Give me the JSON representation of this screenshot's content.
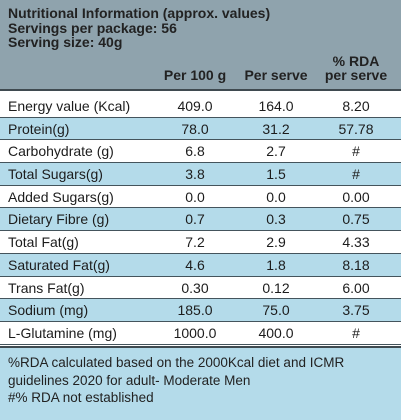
{
  "header": {
    "title": "Nutritional Information (approx. values)",
    "servings": "Servings per package: 56",
    "serving_size": "Serving size: 40g"
  },
  "columns": {
    "per_100g": "Per 100 g",
    "per_serve": "Per serve",
    "rda_line1": "% RDA",
    "rda_line2": "per serve"
  },
  "rows": [
    {
      "name": "Energy value (Kcal)",
      "per_100g": "409.0",
      "per_serve": "164.0",
      "rda": "8.20"
    },
    {
      "name": "Protein(g)",
      "per_100g": "78.0",
      "per_serve": "31.2",
      "rda": "57.78"
    },
    {
      "name": "Carbohydrate (g)",
      "per_100g": "6.8",
      "per_serve": "2.7",
      "rda": "#"
    },
    {
      "name": "Total Sugars(g)",
      "per_100g": "3.8",
      "per_serve": "1.5",
      "rda": "#"
    },
    {
      "name": "Added Sugars(g)",
      "per_100g": "0.0",
      "per_serve": "0.0",
      "rda": "0.00"
    },
    {
      "name": "Dietary Fibre (g)",
      "per_100g": "0.7",
      "per_serve": "0.3",
      "rda": "0.75"
    },
    {
      "name": "Total Fat(g)",
      "per_100g": "7.2",
      "per_serve": "2.9",
      "rda": "4.33"
    },
    {
      "name": "Saturated Fat(g)",
      "per_100g": "4.6",
      "per_serve": "1.8",
      "rda": "8.18"
    },
    {
      "name": "Trans Fat(g)",
      "per_100g": "0.30",
      "per_serve": "0.12",
      "rda": "6.00"
    },
    {
      "name": "Sodium (mg)",
      "per_100g": "185.0",
      "per_serve": "75.0",
      "rda": "3.75"
    },
    {
      "name": "L-Glutamine (mg)",
      "per_100g": "1000.0",
      "per_serve": "400.0",
      "rda": "#"
    }
  ],
  "footer": {
    "line1": "%RDA calculated based on the 2000Kcal diet and ICMR",
    "line2": "guidelines 2020 for adult- Moderate Men",
    "line3": "#% RDA not established"
  },
  "colors": {
    "header_bg": "#8fa3ad",
    "stripe_bg": "#b4dbea",
    "rule": "#44545c"
  }
}
